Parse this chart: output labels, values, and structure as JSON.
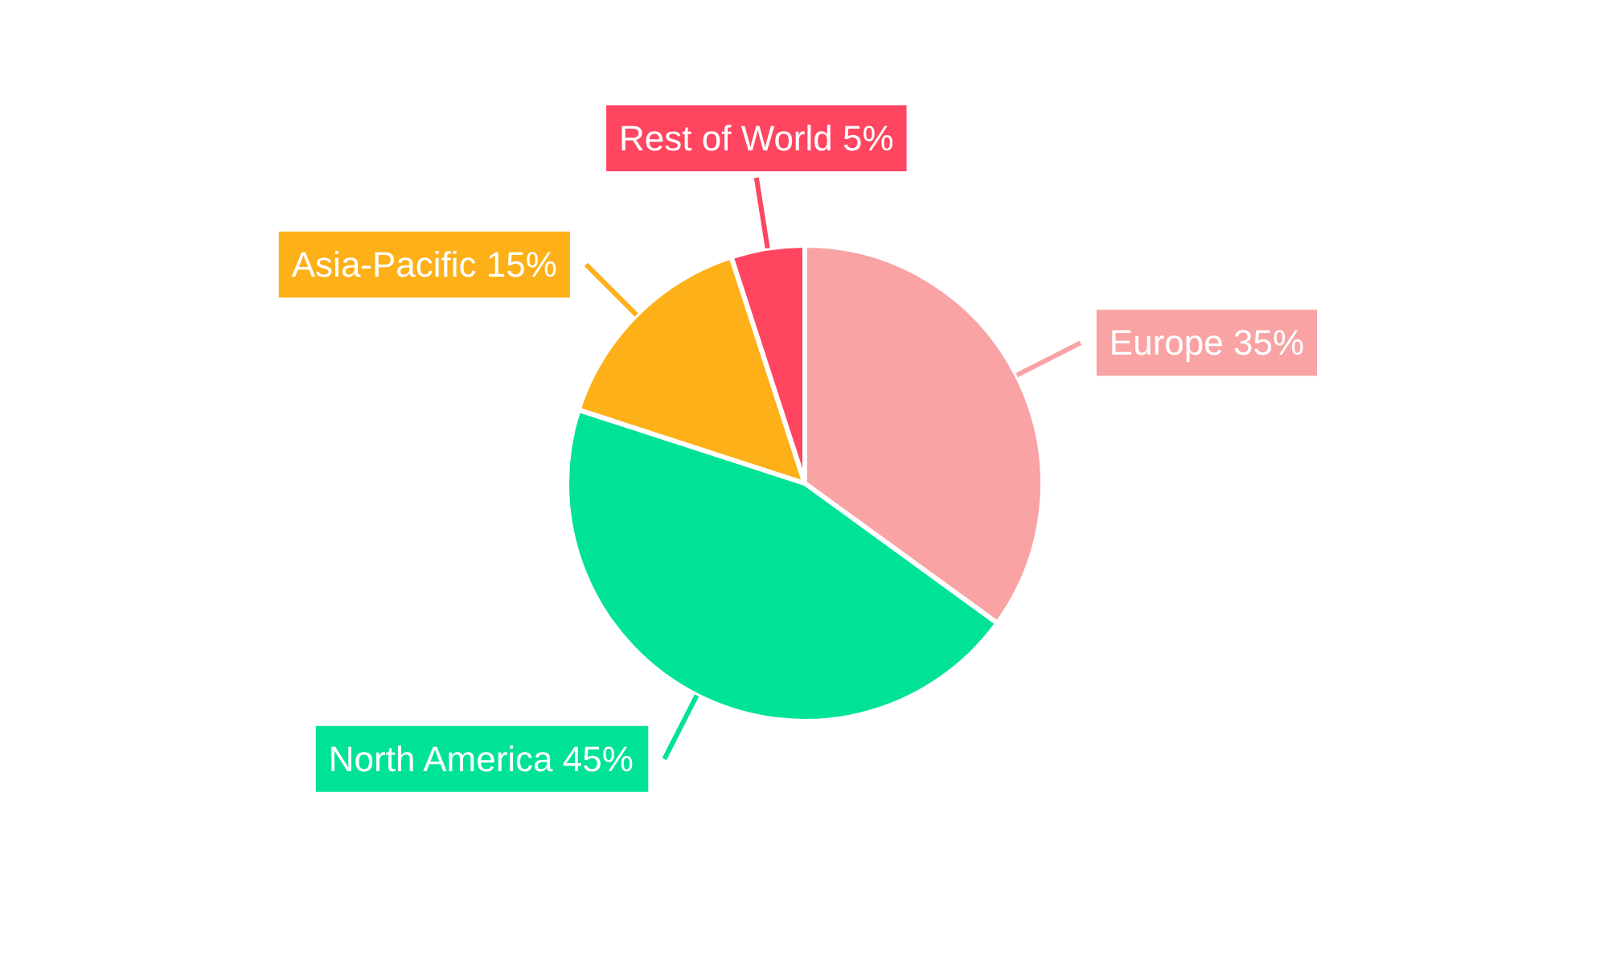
{
  "chart_data": {
    "type": "pie",
    "categories": [
      "Europe",
      "North America",
      "Asia-Pacific",
      "Rest of World"
    ],
    "values": [
      35,
      45,
      15,
      5
    ],
    "value_labels": [
      "35%",
      "45%",
      "15%",
      "5%"
    ],
    "colors": [
      "#f9a3a4",
      "#00e396",
      "#feb019",
      "#ff4560"
    ]
  }
}
